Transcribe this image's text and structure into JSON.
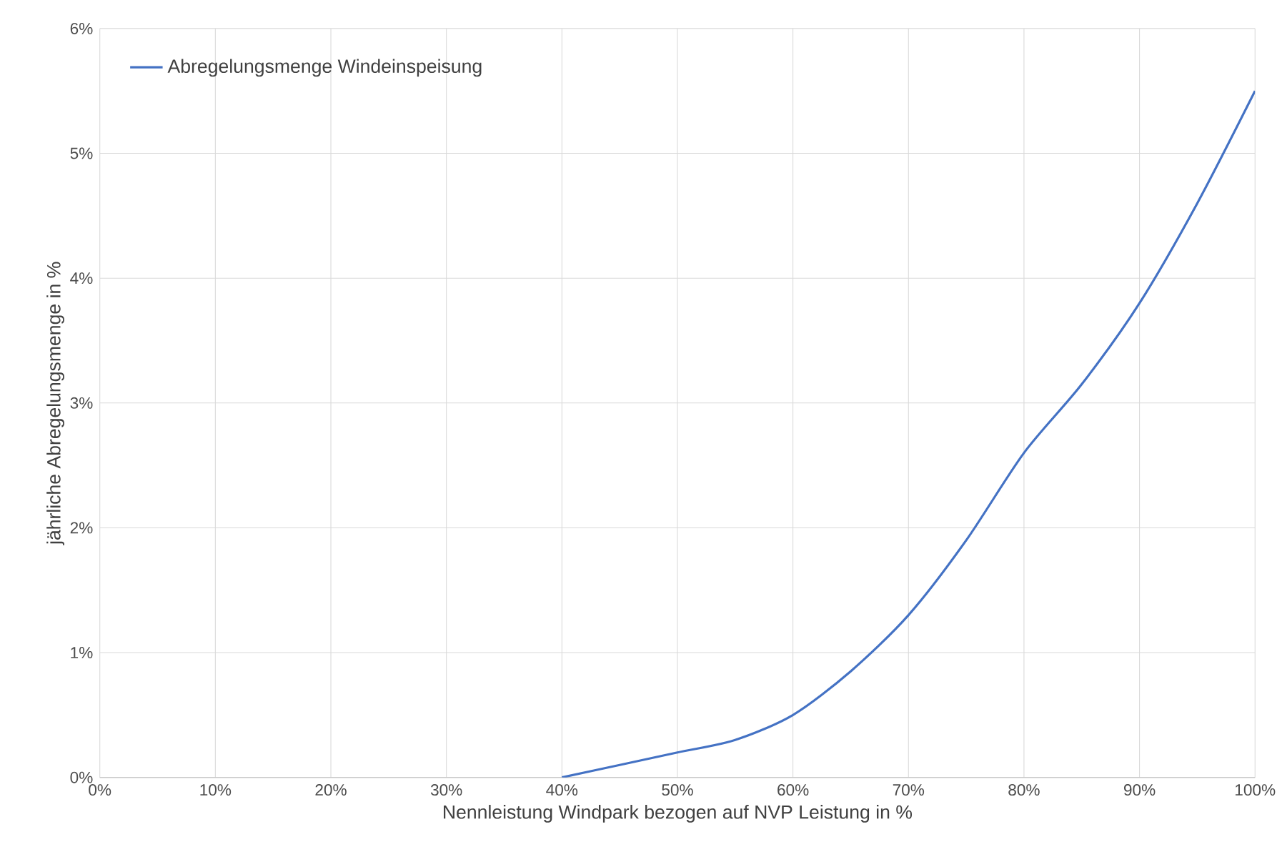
{
  "chart_data": {
    "type": "line",
    "xlabel": "Nennleistung Windpark bezogen auf NVP Leistung in %",
    "ylabel": "jährliche Abregelungsmenge in %",
    "x": [
      40,
      45,
      50,
      55,
      60,
      65,
      70,
      75,
      80,
      85,
      90,
      95,
      100
    ],
    "series": [
      {
        "name": "Abregelungsmenge Windeinspeisung",
        "color": "#4472c4",
        "values": [
          0,
          0.1,
          0.2,
          0.3,
          0.5,
          0.85,
          1.3,
          1.9,
          2.6,
          3.15,
          3.8,
          4.6,
          5.5
        ]
      }
    ],
    "xlim": [
      0,
      100
    ],
    "ylim": [
      0,
      6
    ],
    "xticks": [
      {
        "value": 0,
        "label": "0%"
      },
      {
        "value": 10,
        "label": "10%"
      },
      {
        "value": 20,
        "label": "20%"
      },
      {
        "value": 30,
        "label": "30%"
      },
      {
        "value": 40,
        "label": "40%"
      },
      {
        "value": 50,
        "label": "50%"
      },
      {
        "value": 60,
        "label": "60%"
      },
      {
        "value": 70,
        "label": "70%"
      },
      {
        "value": 80,
        "label": "80%"
      },
      {
        "value": 90,
        "label": "90%"
      },
      {
        "value": 100,
        "label": "100%"
      }
    ],
    "yticks": [
      {
        "value": 0,
        "label": "0%"
      },
      {
        "value": 1,
        "label": "1%"
      },
      {
        "value": 2,
        "label": "2%"
      },
      {
        "value": 3,
        "label": "3%"
      },
      {
        "value": 4,
        "label": "4%"
      },
      {
        "value": 5,
        "label": "5%"
      },
      {
        "value": 6,
        "label": "6%"
      }
    ],
    "grid": true,
    "legend": "top left",
    "marker": "none",
    "line_style": "solid"
  }
}
